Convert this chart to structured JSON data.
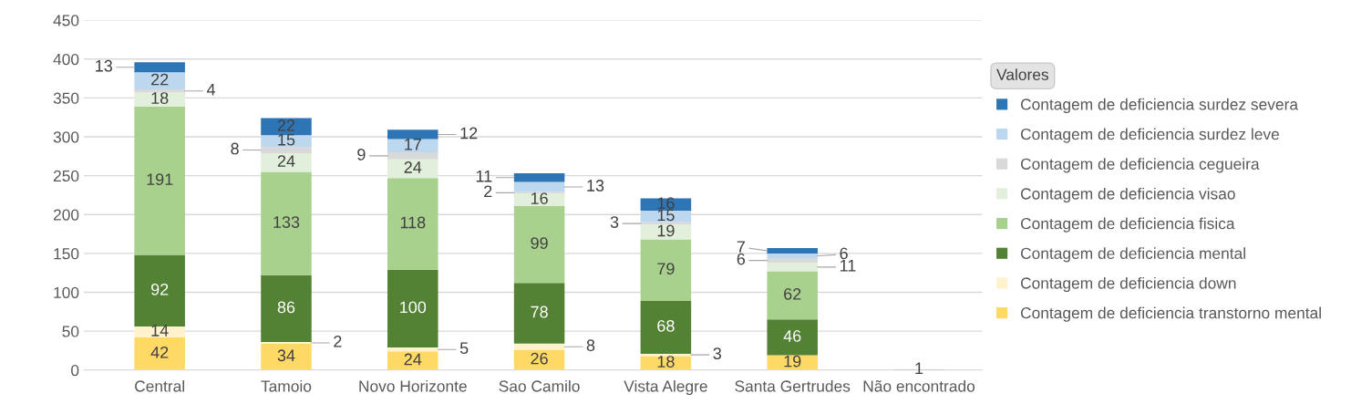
{
  "chart_data": {
    "type": "bar",
    "stacked": true,
    "legend_title": "Valores",
    "legend": "right",
    "grid": "y",
    "data_labels": true,
    "categories": [
      "Central",
      "Tamoio",
      "Novo Horizonte",
      "Sao Camilo",
      "Vista Alegre",
      "Santa Gertrudes",
      "Não encontrado"
    ],
    "ylim": [
      0,
      450
    ],
    "yticks": [
      0,
      50,
      100,
      150,
      200,
      250,
      300,
      350,
      400,
      450
    ],
    "series": [
      {
        "name": "Contagem de deficiencia transtorno mental",
        "color": "#ffd966",
        "values": [
          42,
          34,
          24,
          26,
          18,
          19,
          null
        ]
      },
      {
        "name": "Contagem de deficiencia down",
        "color": "#fff2cc",
        "values": [
          14,
          2,
          5,
          8,
          3,
          null,
          null
        ]
      },
      {
        "name": "Contagem de deficiencia mental",
        "color": "#548235",
        "values": [
          92,
          86,
          100,
          78,
          68,
          46,
          1
        ]
      },
      {
        "name": "Contagem de deficiencia fisica",
        "color": "#a9d18e",
        "values": [
          191,
          133,
          118,
          99,
          79,
          62,
          null
        ]
      },
      {
        "name": "Contagem de deficiencia visao",
        "color": "#e2efda",
        "values": [
          18,
          24,
          24,
          16,
          19,
          11,
          null
        ]
      },
      {
        "name": "Contagem de deficiencia cegueira",
        "color": "#d9d9d9",
        "values": [
          4,
          8,
          9,
          2,
          3,
          6,
          null
        ]
      },
      {
        "name": "Contagem de deficiencia surdez leve",
        "color": "#bdd7ee",
        "values": [
          22,
          15,
          17,
          13,
          15,
          6,
          null
        ]
      },
      {
        "name": "Contagem de deficiencia surdez severa",
        "color": "#2e75b6",
        "values": [
          13,
          22,
          12,
          11,
          16,
          7,
          null
        ]
      }
    ]
  }
}
